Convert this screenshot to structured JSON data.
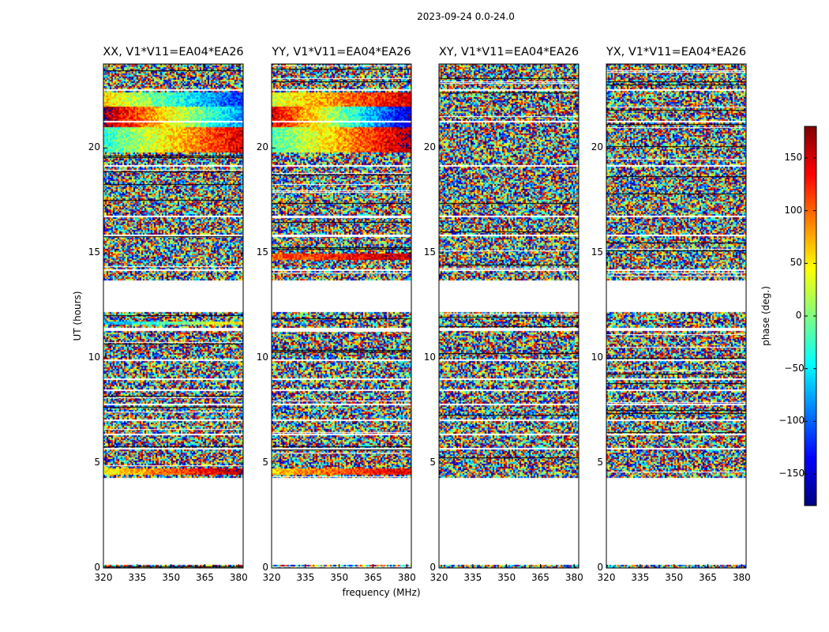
{
  "figure": {
    "suptitle": "2023-09-24 0.0-24.0"
  },
  "chart_data": {
    "type": "heatmap",
    "x_axis": {
      "label": "frequency (MHz)",
      "range": [
        320,
        382
      ],
      "ticks": [
        320,
        335,
        350,
        365,
        380
      ]
    },
    "y_axis": {
      "label": "UT (hours)",
      "range": [
        0,
        24
      ],
      "ticks": [
        0,
        5,
        10,
        15,
        20
      ]
    },
    "colorbar": {
      "label": "phase (deg.)",
      "range": [
        -180,
        180
      ],
      "ticks": [
        -150,
        -100,
        -50,
        0,
        50,
        100,
        150
      ],
      "colormap": "jet",
      "colors": [
        "#00007f",
        "#0000ff",
        "#007fff",
        "#00ffff",
        "#7fff7f",
        "#ffff00",
        "#ff7f00",
        "#ff0000",
        "#7f0000"
      ]
    },
    "panels": [
      {
        "title": "XX, V1*V11=EA04*EA26",
        "coherent_bands": [
          {
            "ut": [
              22.0,
              22.7
            ],
            "phase_start": 60,
            "phase_end": -120
          },
          {
            "ut": [
              21.0,
              22.0
            ],
            "phase_start": 170,
            "phase_end": -90
          },
          {
            "ut": [
              19.8,
              21.0
            ],
            "phase_start": -30,
            "phase_end": 150
          },
          {
            "ut": [
              11.6,
              11.8
            ],
            "phase_start": -80,
            "phase_end": 60
          },
          {
            "ut": [
              4.5,
              4.8
            ],
            "phase_start": 40,
            "phase_end": 170
          }
        ]
      },
      {
        "title": "YY, V1*V11=EA04*EA26",
        "coherent_bands": [
          {
            "ut": [
              22.0,
              22.7
            ],
            "phase_start": 30,
            "phase_end": 150
          },
          {
            "ut": [
              21.0,
              22.0
            ],
            "phase_start": 150,
            "phase_end": -160
          },
          {
            "ut": [
              19.8,
              21.0
            ],
            "phase_start": -20,
            "phase_end": 170
          },
          {
            "ut": [
              14.7,
              15.0
            ],
            "phase_start": 100,
            "phase_end": 160
          },
          {
            "ut": [
              4.5,
              4.8
            ],
            "phase_start": 60,
            "phase_end": 150
          }
        ]
      },
      {
        "title": "XY, V1*V11=EA04*EA26",
        "coherent_bands": []
      },
      {
        "title": "YX, V1*V11=EA04*EA26",
        "coherent_bands": []
      }
    ],
    "data_gaps_ut": [
      [
        0.15,
        4.3
      ],
      [
        12.2,
        13.7
      ]
    ],
    "blank_lines_ut": [
      22.8,
      21.3,
      19.2,
      16.8,
      15.9,
      14.2,
      11.4,
      9.9,
      9.0,
      8.5,
      7.8,
      7.1,
      6.4,
      5.7
    ]
  }
}
